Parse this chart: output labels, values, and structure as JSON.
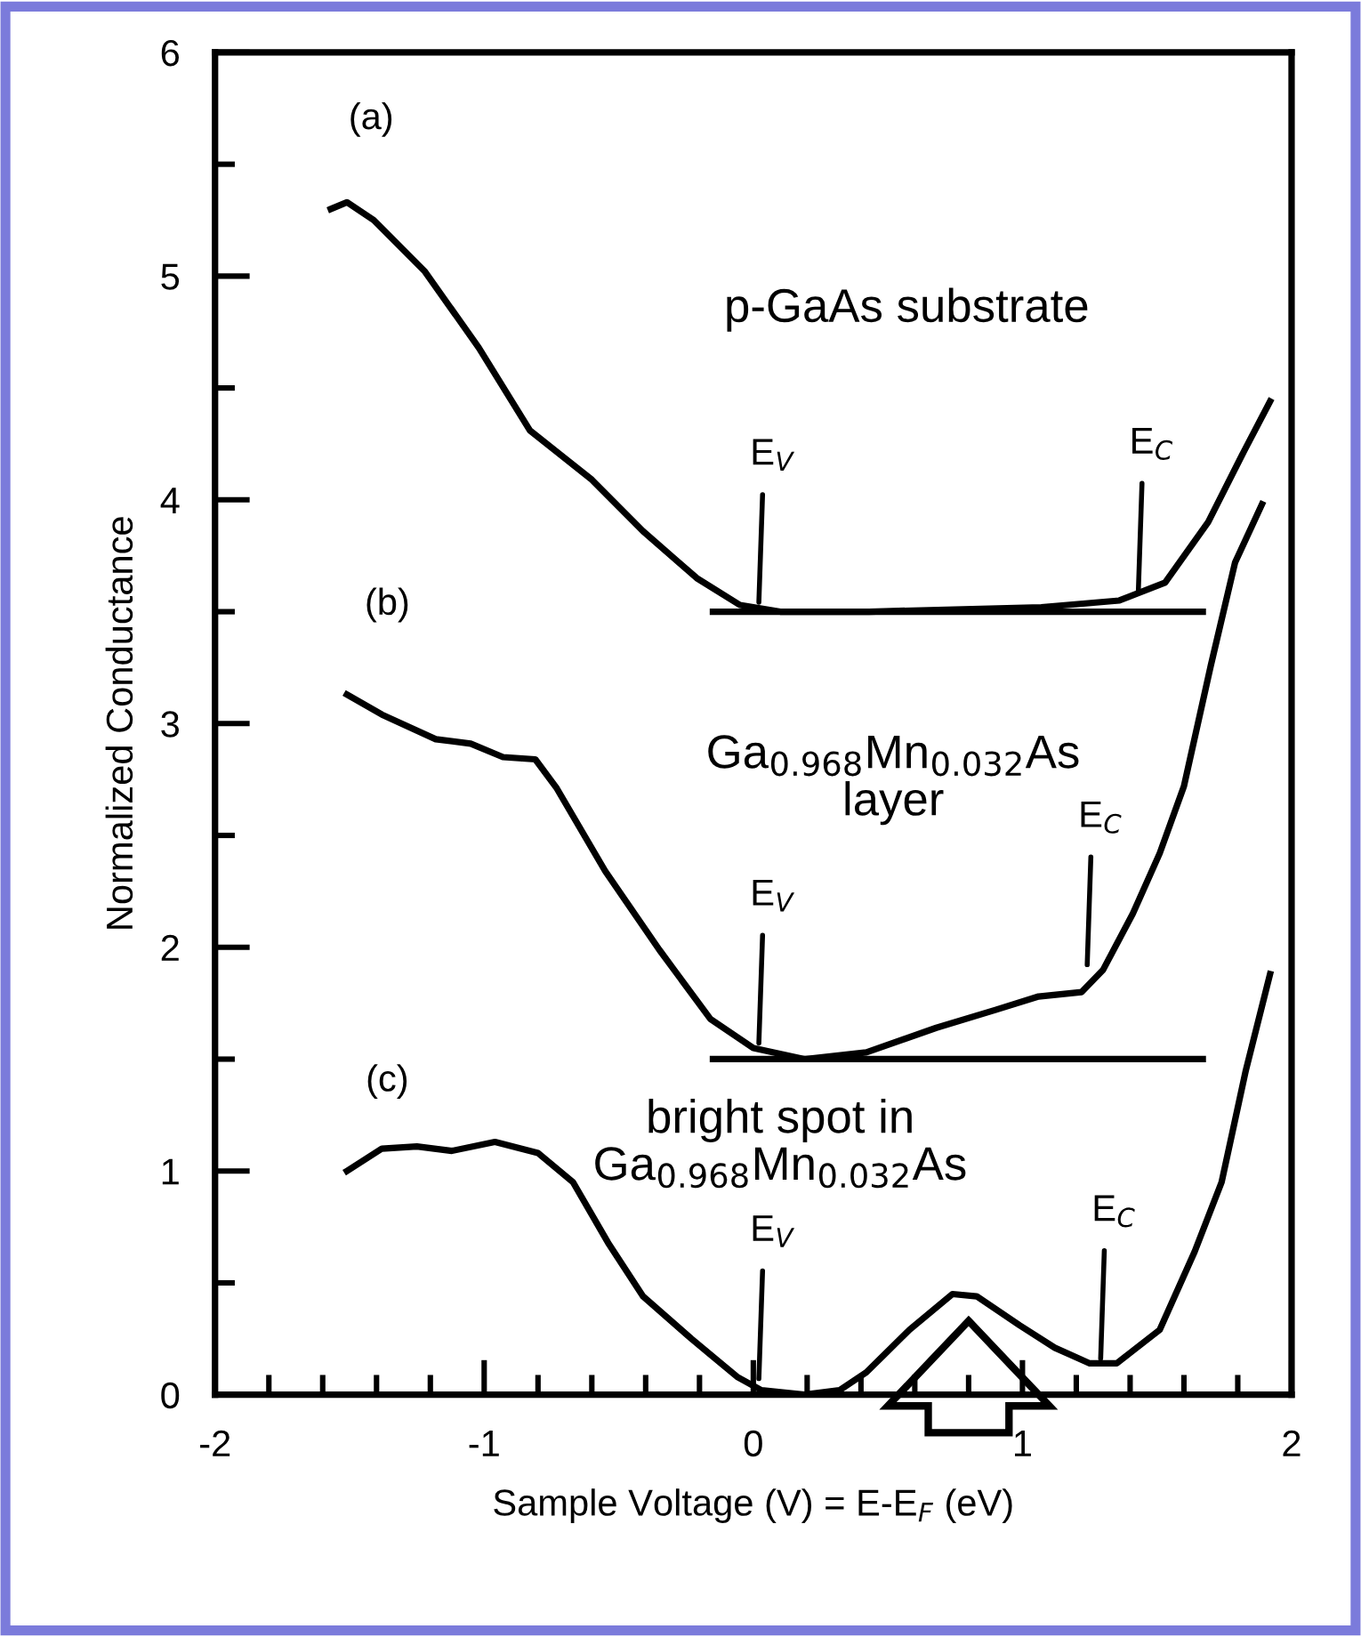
{
  "chart_data": {
    "type": "line",
    "xlabel": "Sample Voltage (V) = E-E$_{F}$ (eV)",
    "ylabel": "Normalized Conductance",
    "xlim": [
      -2,
      2
    ],
    "ylim": [
      0,
      6
    ],
    "xticks": [
      -2,
      {
        "value": -1.8,
        "label": null
      },
      {
        "value": -1.6,
        "label": null
      },
      {
        "value": -1.4,
        "label": null
      },
      {
        "value": -1.2,
        "label": null
      },
      -1,
      {
        "value": -0.8,
        "label": null
      },
      {
        "value": -0.6,
        "label": null
      },
      {
        "value": -0.4,
        "label": null
      },
      {
        "value": -0.2,
        "label": null
      },
      0,
      {
        "value": 0.2,
        "label": null
      },
      {
        "value": 0.4,
        "label": null
      },
      {
        "value": 0.6,
        "label": null
      },
      {
        "value": 0.8,
        "label": null
      },
      1,
      {
        "value": 1.2,
        "label": null
      },
      {
        "value": 1.4,
        "label": null
      },
      {
        "value": 1.6,
        "label": null
      },
      {
        "value": 1.8,
        "label": null
      },
      2
    ],
    "yticks": [
      0,
      {
        "value": 0.5,
        "label": null
      },
      1,
      {
        "value": 1.5,
        "label": null
      },
      2,
      {
        "value": 2.5,
        "label": null
      },
      3,
      {
        "value": 3.5,
        "label": null
      },
      4,
      {
        "value": 4.5,
        "label": null
      },
      5,
      {
        "value": 5.5,
        "label": null
      },
      6
    ],
    "grid": false,
    "legend": false,
    "marker": "none",
    "line_style": "solid",
    "series": [
      {
        "name": "(a)",
        "color": "#000000",
        "x": [
          -1.57,
          -1.51,
          -1.41,
          -1.22,
          -1.02,
          -0.83,
          -0.6,
          -0.41,
          -0.21,
          -0.05,
          0.1,
          0.43,
          0.75,
          1.07,
          1.36,
          1.53,
          1.69,
          1.82,
          1.92
        ],
        "values": [
          5.3,
          5.33,
          5.25,
          5.02,
          4.68,
          4.31,
          4.09,
          3.86,
          3.65,
          3.53,
          3.5,
          3.5,
          3.51,
          3.52,
          3.55,
          3.63,
          3.9,
          4.21,
          4.44
        ]
      },
      {
        "color": "#000000",
        "x": [
          -0.15,
          1.67
        ],
        "values": [
          3.5,
          3.5
        ]
      },
      {
        "name": "(b)",
        "color": "#000000",
        "x": [
          -1.51,
          -1.38,
          -1.18,
          -1.05,
          -0.93,
          -0.81,
          -0.73,
          -0.55,
          -0.35,
          -0.16,
          0.0,
          0.19,
          0.42,
          0.68,
          0.9,
          1.06,
          1.22,
          1.3,
          1.41,
          1.51,
          1.6,
          1.7,
          1.79,
          1.89
        ],
        "values": [
          3.13,
          3.04,
          2.93,
          2.91,
          2.85,
          2.84,
          2.71,
          2.34,
          1.99,
          1.68,
          1.55,
          1.5,
          1.53,
          1.64,
          1.72,
          1.78,
          1.8,
          1.9,
          2.15,
          2.42,
          2.72,
          3.26,
          3.72,
          3.98
        ]
      },
      {
        "color": "#000000",
        "x": [
          -0.15,
          1.67
        ],
        "values": [
          1.5,
          1.5
        ]
      },
      {
        "name": "(c)",
        "color": "#000000",
        "x": [
          -1.51,
          -1.38,
          -1.25,
          -1.12,
          -0.96,
          -0.8,
          -0.67,
          -0.54,
          -0.41,
          -0.23,
          -0.06,
          0.03,
          0.19,
          0.32,
          0.42,
          0.58,
          0.74,
          0.83,
          0.99,
          1.12,
          1.25,
          1.35,
          1.51,
          1.64,
          1.74,
          1.83,
          1.92
        ],
        "values": [
          1.0,
          1.1,
          1.11,
          1.09,
          1.13,
          1.08,
          0.95,
          0.68,
          0.44,
          0.25,
          0.08,
          0.02,
          0.0,
          0.02,
          0.1,
          0.29,
          0.45,
          0.44,
          0.31,
          0.21,
          0.14,
          0.14,
          0.29,
          0.64,
          0.95,
          1.45,
          1.88
        ]
      }
    ],
    "annotations": [
      "p-GaAs substrate",
      "Ga$_{0.968}$Mn$_{0.032}$As\nlayer",
      "bright spot in\nGa$_{0.968}$Mn$_{0.032}$As",
      {
        "text": "E$_{V}$",
        "x": 0.02,
        "y": 3.52
      },
      {
        "text": "E$_{C}$",
        "x": 1.43,
        "y": 3.57
      },
      {
        "text": "E$_{V}$",
        "x": 0.02,
        "y": 1.55
      },
      {
        "text": "E$_{C}$",
        "x": 1.24,
        "y": 1.9
      },
      {
        "text": "E$_{V}$",
        "x": 0.02,
        "y": 0.05
      },
      {
        "text": "E$_{C}$",
        "x": 1.29,
        "y": 0.14
      }
    ]
  }
}
